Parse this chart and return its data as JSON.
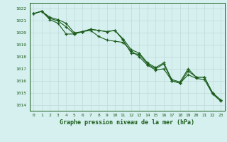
{
  "line1": [
    1021.6,
    1021.8,
    1021.3,
    1021.1,
    1020.8,
    1020.0,
    1020.1,
    1020.3,
    1020.2,
    1020.1,
    1020.2,
    1019.5,
    1018.6,
    1018.3,
    1017.5,
    1017.1,
    1017.5,
    1016.1,
    1015.9,
    1017.0,
    1016.3,
    1016.3,
    1015.0,
    1014.4
  ],
  "line2": [
    1021.6,
    1021.8,
    1021.2,
    1021.0,
    1020.5,
    1019.9,
    1020.1,
    1020.3,
    1020.2,
    1020.1,
    1020.2,
    1019.4,
    1018.3,
    1018.2,
    1017.4,
    1017.0,
    1017.4,
    1016.0,
    1015.8,
    1016.8,
    1016.3,
    1016.3,
    1015.0,
    1014.4
  ],
  "line3": [
    1021.6,
    1021.8,
    1021.1,
    1020.8,
    1019.9,
    1019.9,
    1020.1,
    1020.2,
    1019.7,
    1019.4,
    1019.3,
    1019.2,
    1018.5,
    1018.0,
    1017.3,
    1016.9,
    1017.0,
    1016.0,
    1015.8,
    1016.5,
    1016.2,
    1016.1,
    1014.9,
    1014.3
  ],
  "hours": [
    0,
    1,
    2,
    3,
    4,
    5,
    6,
    7,
    8,
    9,
    10,
    11,
    12,
    13,
    14,
    15,
    16,
    17,
    18,
    19,
    20,
    21,
    22,
    23
  ],
  "line_color": "#1a5c1a",
  "bg_color": "#d6f0f0",
  "grid_color": "#c0d8d8",
  "xlabel": "Graphe pression niveau de la mer (hPa)",
  "ylim": [
    1013.5,
    1022.5
  ],
  "yticks": [
    1014,
    1015,
    1016,
    1017,
    1018,
    1019,
    1020,
    1021,
    1022
  ],
  "xticks": [
    0,
    1,
    2,
    3,
    4,
    5,
    6,
    7,
    8,
    9,
    10,
    11,
    12,
    13,
    14,
    15,
    16,
    17,
    18,
    19,
    20,
    21,
    22,
    23
  ],
  "marker": "+"
}
